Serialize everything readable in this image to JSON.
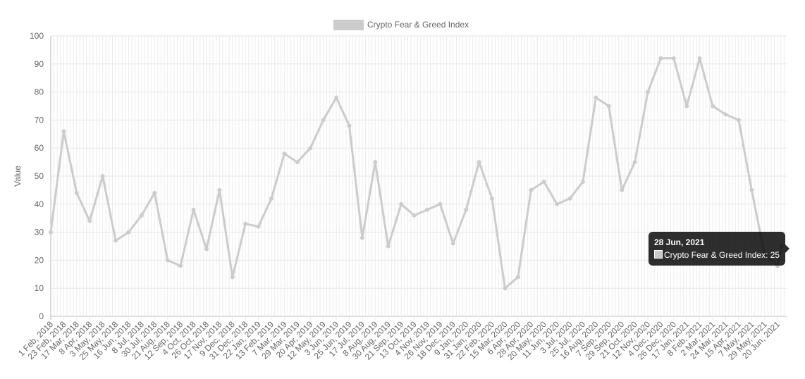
{
  "chart_data": {
    "type": "line",
    "title": "",
    "xlabel": "",
    "ylabel": "Value",
    "ylim": [
      0,
      100
    ],
    "y_ticks": [
      0,
      10,
      20,
      30,
      40,
      50,
      60,
      70,
      80,
      90,
      100
    ],
    "grid": true,
    "legend": "top-center",
    "line_color": "#cccccc",
    "x_tick_labels": [
      "1 Feb, 2018",
      "23 Feb, 2018",
      "17 Mar, 2018",
      "8 Apr, 2018",
      "3 May, 2018",
      "25 May, 2018",
      "16 Jun, 2018",
      "8 Jul, 2018",
      "30 Jul, 2018",
      "21 Aug, 2018",
      "12 Sep, 2018",
      "4 Oct, 2018",
      "26 Oct, 2018",
      "17 Nov, 2018",
      "9 Dec, 2018",
      "31 Dec, 2018",
      "22 Jan, 2019",
      "13 Feb, 2019",
      "7 Mar, 2019",
      "29 Mar, 2019",
      "20 Apr, 2019",
      "12 May, 2019",
      "3 Jun, 2019",
      "25 Jun, 2019",
      "17 Jul, 2019",
      "8 Aug, 2019",
      "30 Aug, 2019",
      "21 Sep, 2019",
      "13 Oct, 2019",
      "4 Nov, 2019",
      "26 Nov, 2019",
      "18 Dec, 2019",
      "9 Jan, 2020",
      "31 Jan, 2020",
      "22 Feb, 2020",
      "15 Mar, 2020",
      "6 Apr, 2020",
      "28 Apr, 2020",
      "20 May, 2020",
      "11 Jun, 2020",
      "3 Jul, 2020",
      "25 Jul, 2020",
      "16 Aug, 2020",
      "7 Sep, 2020",
      "29 Sep, 2020",
      "21 Oct, 2020",
      "12 Nov, 2020",
      "4 Dec, 2020",
      "26 Dec, 2020",
      "17 Jan, 2021",
      "8 Feb, 2021",
      "2 Mar, 2021",
      "24 Mar, 2021",
      "15 Apr, 2021",
      "7 May, 2021",
      "29 May, 2021",
      "20 Jun, 2021"
    ],
    "series": [
      {
        "name": "Crypto Fear & Greed Index",
        "x": [
          "1 Feb, 2018",
          "23 Feb, 2018",
          "17 Mar, 2018",
          "8 Apr, 2018",
          "3 May, 2018",
          "25 May, 2018",
          "16 Jun, 2018",
          "8 Jul, 2018",
          "30 Jul, 2018",
          "21 Aug, 2018",
          "12 Sep, 2018",
          "4 Oct, 2018",
          "26 Oct, 2018",
          "17 Nov, 2018",
          "9 Dec, 2018",
          "31 Dec, 2018",
          "22 Jan, 2019",
          "13 Feb, 2019",
          "7 Mar, 2019",
          "29 Mar, 2019",
          "20 Apr, 2019",
          "12 May, 2019",
          "3 Jun, 2019",
          "25 Jun, 2019",
          "17 Jul, 2019",
          "8 Aug, 2019",
          "30 Aug, 2019",
          "21 Sep, 2019",
          "13 Oct, 2019",
          "4 Nov, 2019",
          "26 Nov, 2019",
          "18 Dec, 2019",
          "9 Jan, 2020",
          "31 Jan, 2020",
          "22 Feb, 2020",
          "15 Mar, 2020",
          "6 Apr, 2020",
          "28 Apr, 2020",
          "20 May, 2020",
          "11 Jun, 2020",
          "3 Jul, 2020",
          "25 Jul, 2020",
          "16 Aug, 2020",
          "7 Sep, 2020",
          "29 Sep, 2020",
          "21 Oct, 2020",
          "12 Nov, 2020",
          "4 Dec, 2020",
          "26 Dec, 2020",
          "17 Jan, 2021",
          "8 Feb, 2021",
          "2 Mar, 2021",
          "24 Mar, 2021",
          "15 Apr, 2021",
          "7 May, 2021",
          "29 May, 2021",
          "20 Jun, 2021",
          "28 Jun, 2021"
        ],
        "values": [
          30,
          66,
          44,
          34,
          50,
          27,
          30,
          36,
          44,
          20,
          18,
          38,
          24,
          45,
          14,
          33,
          32,
          42,
          58,
          55,
          60,
          70,
          78,
          68,
          28,
          55,
          25,
          40,
          36,
          38,
          40,
          26,
          38,
          55,
          42,
          10,
          14,
          45,
          48,
          40,
          42,
          48,
          78,
          75,
          45,
          55,
          80,
          92,
          92,
          75,
          92,
          75,
          72,
          70,
          45,
          22,
          18,
          25
        ]
      }
    ]
  },
  "legend": {
    "label": "Crypto Fear & Greed Index"
  },
  "tooltip": {
    "title": "28 Jun, 2021",
    "line": "Crypto Fear & Greed Index: 25"
  }
}
